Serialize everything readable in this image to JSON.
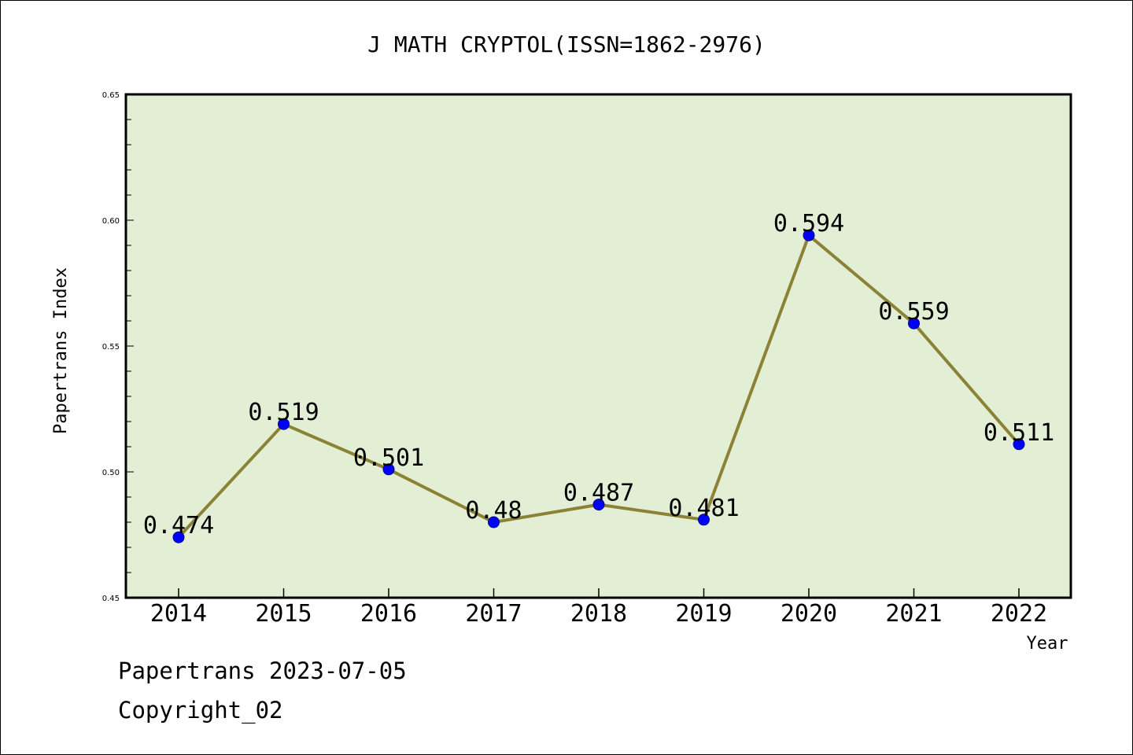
{
  "chart_data": {
    "type": "line",
    "title": "J MATH CRYPTOL(ISSN=1862-2976)",
    "xlabel": "Year",
    "ylabel": "Papertrans Index",
    "categories": [
      "2014",
      "2015",
      "2016",
      "2017",
      "2018",
      "2019",
      "2020",
      "2021",
      "2022"
    ],
    "series": [
      {
        "values": [
          0.474,
          0.519,
          0.501,
          0.48,
          0.487,
          0.481,
          0.594,
          0.559,
          0.511
        ]
      }
    ],
    "data_labels": [
      "0.474",
      "0.519",
      "0.501",
      "0.48",
      "0.487",
      "0.481",
      "0.594",
      "0.559",
      "0.511"
    ],
    "ylim": [
      0.45,
      0.65
    ],
    "yticks": [
      "0.45",
      "0.50",
      "0.55",
      "0.60",
      "0.65"
    ],
    "grid": false,
    "colors": {
      "plot_background": "#e2efd5",
      "line": "#8b8236",
      "marker": "#0000ff"
    }
  },
  "footer": {
    "line1": "Papertrans 2023-07-05",
    "line2": "Copyright_02"
  }
}
